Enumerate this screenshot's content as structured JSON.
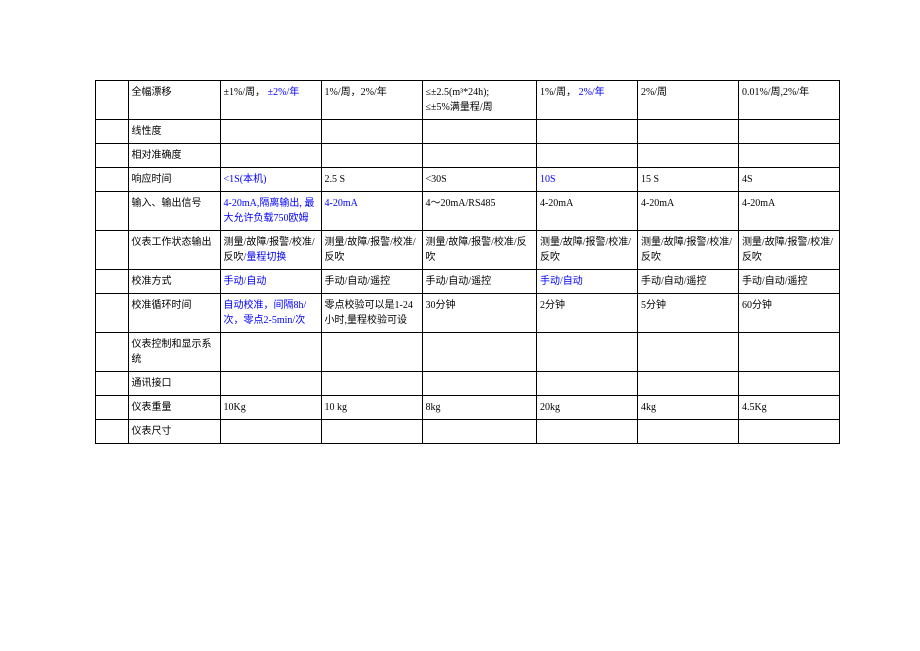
{
  "rows": [
    {
      "label": "全幅漂移",
      "c2_a": "±1%/周，",
      "c2_b": "±2%/年",
      "c3": "1%/周，2%/年",
      "c4_a": "≤±2.5(m³*24h);",
      "c4_b": "≤±5%满量程/周",
      "c5_a": "1%/周，",
      "c5_b": "2%/年",
      "c6": "2%/周",
      "c7": "0.01%/周,2%/年"
    },
    {
      "label": "线性度",
      "c2": "",
      "c3": "",
      "c4": "",
      "c5": "",
      "c6": "",
      "c7": ""
    },
    {
      "label": "相对准确度",
      "c2": "",
      "c3": "",
      "c4": "",
      "c5": "",
      "c6": "",
      "c7": ""
    },
    {
      "label": "响应时间",
      "c2": "<1S(本机)",
      "c3": "2.5 S",
      "c4": "<30S",
      "c5": "10S",
      "c6": "15 S",
      "c7": "4S"
    },
    {
      "label": "输入、输出信号",
      "c2_a": "4-20mA,隔离输出,",
      "c2_b": "最大允许负载750欧姆",
      "c3": "4-20mA",
      "c4": "4～20mA/RS485",
      "c5": "4-20mA",
      "c6": "4-20mA",
      "c7": "4-20mA"
    },
    {
      "label": "仪表工作状态输出",
      "c2_a": "测量/故障/报警/",
      "c2_b": "校准/反吹",
      "c2_c": "/量程切换",
      "c3": "测量/故障/报警/校准/反吹",
      "c4": "测量/故障/报警/校准/反吹",
      "c5": "测量/故障/报警/校准/反吹",
      "c6": "测量/故障/报警/校准/反吹",
      "c7": "测量/故障/报警/校准/反吹"
    },
    {
      "label": "校准方式",
      "c2": "手动/自动",
      "c3": "手动/自动/遥控",
      "c4": "手动/自动/遥控",
      "c5": "手动/自动",
      "c6": "手动/自动/遥控",
      "c7": "手动/自动/遥控"
    },
    {
      "label": "校准循环时间",
      "c2": "自动校准，间隔8h/次，零点2-5min/次",
      "c3": "零点校验可以是1-24小时,量程校验可设",
      "c4": "30分钟",
      "c5": "2分钟",
      "c6": "5分钟",
      "c7": "60分钟"
    },
    {
      "label": "仪表控制和显示系统",
      "c2": "",
      "c3": "",
      "c4": "",
      "c5": "",
      "c6": "",
      "c7": ""
    },
    {
      "label": "通讯接口",
      "c2": "",
      "c3": "",
      "c4": "",
      "c5": "",
      "c6": "",
      "c7": ""
    },
    {
      "label": "仪表重量",
      "c2": "10Kg",
      "c3": "10 kg",
      "c4": "8kg",
      "c5": "20kg",
      "c6": "4kg",
      "c7": "4.5Kg"
    },
    {
      "label": "仪表尺寸",
      "c2": "",
      "c3": "",
      "c4": "",
      "c5": "",
      "c6": "",
      "c7": ""
    }
  ]
}
